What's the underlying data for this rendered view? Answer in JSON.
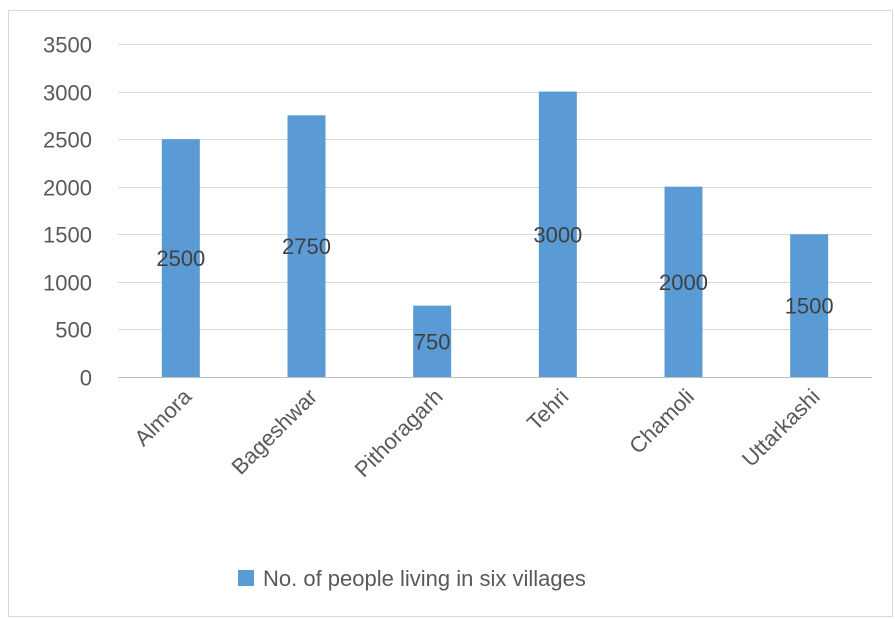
{
  "chart_data": {
    "type": "bar",
    "categories": [
      "Almora",
      "Bageshwar",
      "Pithoragarh",
      "Tehri",
      "Chamoli",
      "Uttarkashi"
    ],
    "series": [
      {
        "name": "No. of people living in six villages",
        "values": [
          2500,
          2750,
          750,
          3000,
          2000,
          1500
        ],
        "color": "#5B9BD5"
      }
    ],
    "ylim": [
      0,
      3500
    ],
    "yticks": [
      0,
      500,
      1000,
      1500,
      2000,
      2500,
      3000,
      3500
    ],
    "grid": true,
    "data_labels": true,
    "legend_position": "bottom",
    "title": "",
    "xlabel": "",
    "ylabel": ""
  }
}
